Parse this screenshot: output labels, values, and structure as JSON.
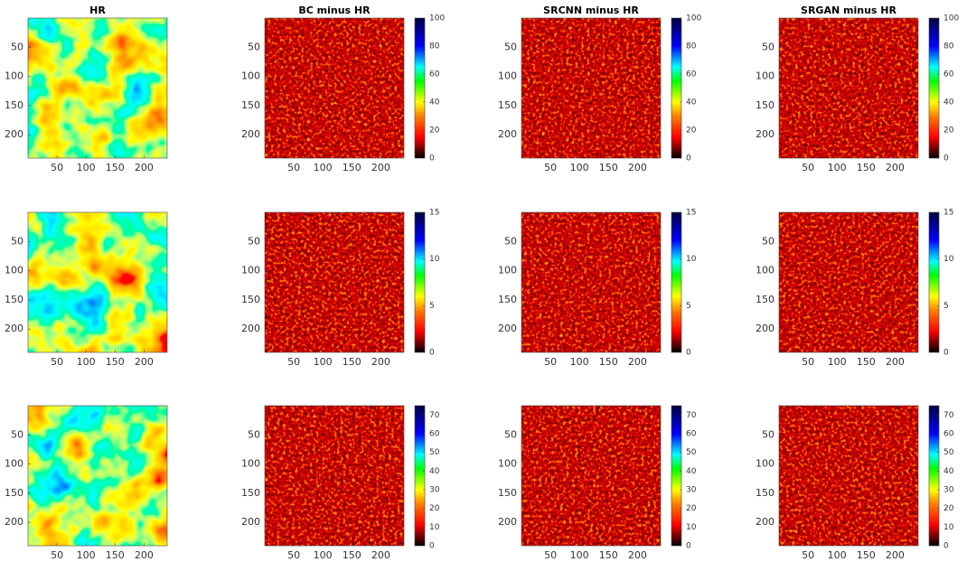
{
  "chart_data": [
    {
      "type": "image",
      "title": "HR",
      "xlim": [
        0,
        240
      ],
      "ylim": [
        240,
        0
      ],
      "xticks": [
        50,
        100,
        150,
        200
      ],
      "yticks": [
        50,
        100,
        150,
        200
      ]
    },
    {
      "type": "image",
      "title": "BC minus HR",
      "xlim": [
        0,
        240
      ],
      "ylim": [
        240,
        0
      ],
      "xticks": [
        50,
        100,
        150,
        200
      ],
      "yticks": [
        50,
        100,
        150,
        200
      ],
      "clim": [
        0,
        100
      ],
      "cticks": [
        0,
        20,
        40,
        60,
        80,
        100
      ]
    },
    {
      "type": "image",
      "title": "SRCNN minus HR",
      "xlim": [
        0,
        240
      ],
      "ylim": [
        240,
        0
      ],
      "xticks": [
        50,
        100,
        150,
        200
      ],
      "yticks": [
        50,
        100,
        150,
        200
      ],
      "clim": [
        0,
        100
      ],
      "cticks": [
        0,
        20,
        40,
        60,
        80,
        100
      ]
    },
    {
      "type": "image",
      "title": "SRGAN minus HR",
      "xlim": [
        0,
        240
      ],
      "ylim": [
        240,
        0
      ],
      "xticks": [
        50,
        100,
        150,
        200
      ],
      "yticks": [
        50,
        100,
        150,
        200
      ],
      "clim": [
        0,
        100
      ],
      "cticks": [
        0,
        20,
        40,
        60,
        80,
        100
      ]
    },
    {
      "type": "image",
      "xlim": [
        0,
        240
      ],
      "ylim": [
        240,
        0
      ],
      "xticks": [
        50,
        100,
        150,
        200
      ],
      "yticks": [
        50,
        100,
        150,
        200
      ]
    },
    {
      "type": "image",
      "xlim": [
        0,
        240
      ],
      "ylim": [
        240,
        0
      ],
      "xticks": [
        50,
        100,
        150,
        200
      ],
      "yticks": [
        50,
        100,
        150,
        200
      ],
      "clim": [
        0,
        15
      ],
      "cticks": [
        0,
        5,
        10,
        15
      ]
    },
    {
      "type": "image",
      "xlim": [
        0,
        240
      ],
      "ylim": [
        240,
        0
      ],
      "xticks": [
        50,
        100,
        150,
        200
      ],
      "yticks": [
        50,
        100,
        150,
        200
      ],
      "clim": [
        0,
        15
      ],
      "cticks": [
        0,
        5,
        10,
        15
      ]
    },
    {
      "type": "image",
      "xlim": [
        0,
        240
      ],
      "ylim": [
        240,
        0
      ],
      "xticks": [
        50,
        100,
        150,
        200
      ],
      "yticks": [
        50,
        100,
        150,
        200
      ],
      "clim": [
        0,
        15
      ],
      "cticks": [
        0,
        5,
        10,
        15
      ]
    },
    {
      "type": "image",
      "xlim": [
        0,
        240
      ],
      "ylim": [
        240,
        0
      ],
      "xticks": [
        50,
        100,
        150,
        200
      ],
      "yticks": [
        50,
        100,
        150,
        200
      ]
    },
    {
      "type": "image",
      "xlim": [
        0,
        240
      ],
      "ylim": [
        240,
        0
      ],
      "xticks": [
        50,
        100,
        150,
        200
      ],
      "yticks": [
        50,
        100,
        150,
        200
      ],
      "clim": [
        0,
        75
      ],
      "cticks": [
        0,
        10,
        20,
        30,
        40,
        50,
        60,
        70
      ]
    },
    {
      "type": "image",
      "xlim": [
        0,
        240
      ],
      "ylim": [
        240,
        0
      ],
      "xticks": [
        50,
        100,
        150,
        200
      ],
      "yticks": [
        50,
        100,
        150,
        200
      ],
      "clim": [
        0,
        75
      ],
      "cticks": [
        0,
        10,
        20,
        30,
        40,
        50,
        60,
        70
      ]
    },
    {
      "type": "image",
      "xlim": [
        0,
        240
      ],
      "ylim": [
        240,
        0
      ],
      "xticks": [
        50,
        100,
        150,
        200
      ],
      "yticks": [
        50,
        100,
        150,
        200
      ],
      "clim": [
        0,
        75
      ],
      "cticks": [
        0,
        10,
        20,
        30,
        40,
        50,
        60,
        70
      ]
    }
  ]
}
